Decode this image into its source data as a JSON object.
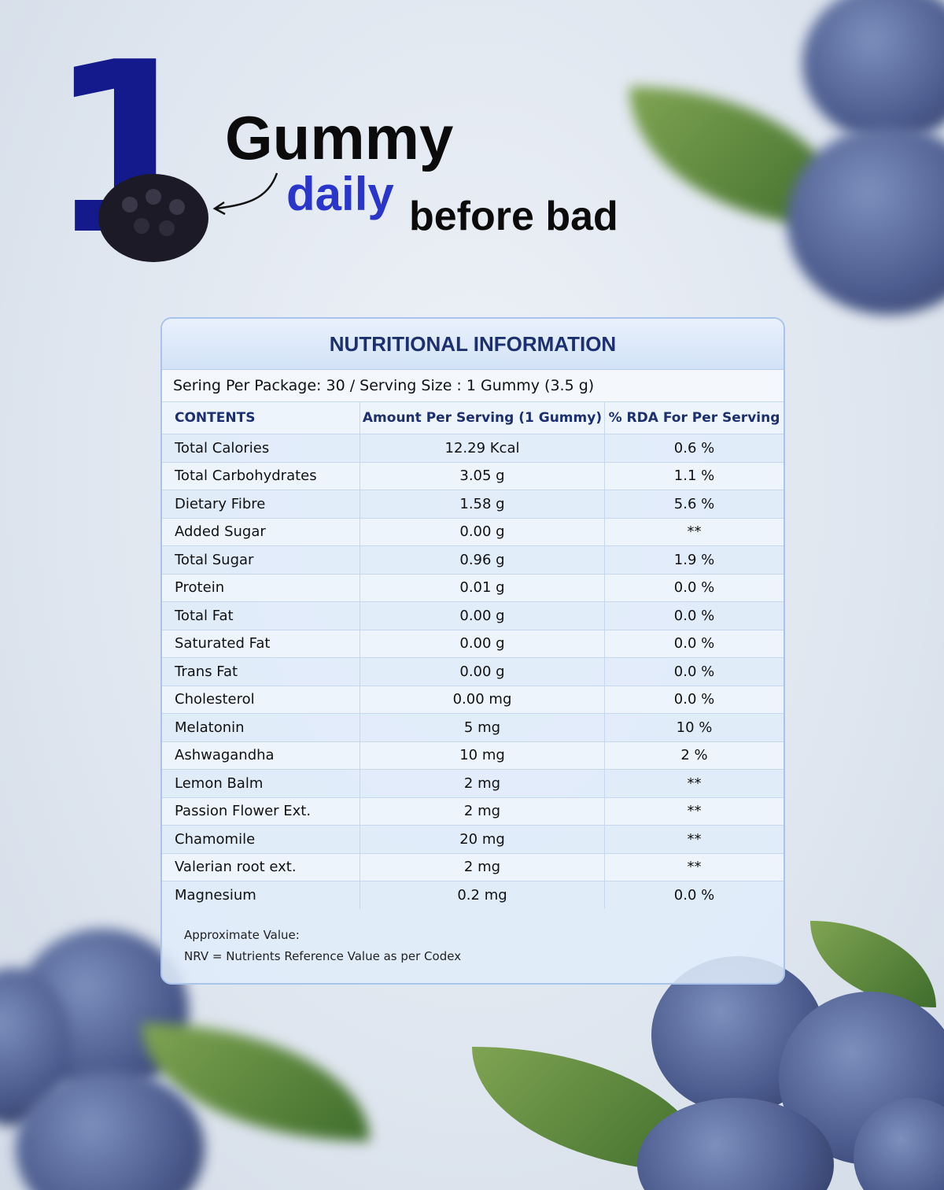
{
  "header": {
    "number": "1",
    "line1": "Gummy",
    "line2": "daily",
    "line3": "before bad"
  },
  "table": {
    "title": "NUTRITIONAL INFORMATION",
    "serving": "Sering Per Package: 30 / Serving Size : 1 Gummy (3.5 g)",
    "columns": [
      "CONTENTS",
      "Amount Per Serving (1 Gummy)",
      "% RDA For Per Serving"
    ],
    "rows": [
      [
        "Total Calories",
        "12.29 Kcal",
        "0.6 %"
      ],
      [
        "Total Carbohydrates",
        "3.05 g",
        "1.1 %"
      ],
      [
        "Dietary Fibre",
        "1.58 g",
        "5.6 %"
      ],
      [
        "Added Sugar",
        "0.00 g",
        "**"
      ],
      [
        "Total Sugar",
        "0.96 g",
        "1.9 %"
      ],
      [
        "Protein",
        "0.01 g",
        "0.0 %"
      ],
      [
        "Total Fat",
        "0.00 g",
        "0.0 %"
      ],
      [
        "Saturated Fat",
        "0.00 g",
        "0.0 %"
      ],
      [
        "Trans Fat",
        "0.00 g",
        "0.0 %"
      ],
      [
        "Cholesterol",
        "0.00 mg",
        "0.0 %"
      ],
      [
        "Melatonin",
        "5 mg",
        "10 %"
      ],
      [
        "Ashwagandha",
        "10 mg",
        "2 %"
      ],
      [
        "Lemon Balm",
        "2 mg",
        "**"
      ],
      [
        "Passion Flower Ext.",
        "2 mg",
        "**"
      ],
      [
        "Chamomile",
        "20 mg",
        "**"
      ],
      [
        "Valerian root ext.",
        "2 mg",
        "**"
      ],
      [
        "Magnesium",
        "0.2 mg",
        "0.0 %"
      ]
    ]
  },
  "footer": {
    "note1": "Approximate Value:",
    "note2": "NRV = Nutrients Reference Value as per Codex"
  }
}
